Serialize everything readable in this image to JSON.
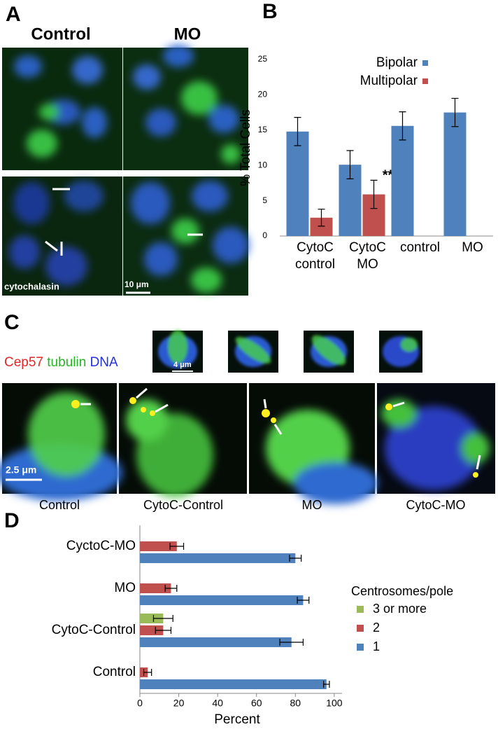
{
  "panel_labels": [
    "A",
    "B",
    "C",
    "D"
  ],
  "panel_a": {
    "columns": [
      "Control",
      "MO"
    ],
    "treatment": "cytochalasin",
    "scale_bar": "10 μm"
  },
  "panel_c": {
    "stain_legend": [
      {
        "text": "Cep57",
        "color": "#e02828"
      },
      {
        "text": "tubulin",
        "color": "#22b822"
      },
      {
        "text": "DNA",
        "color": "#2232d8"
      }
    ],
    "scale_bar_small": "4 μm",
    "scale_bar_large": "2.5 μm",
    "captions": [
      "Control",
      "CytoC-Control",
      "MO",
      "CytoC-MO"
    ]
  },
  "chart_data": [
    {
      "type": "bar",
      "ylabel": "% Total Cells",
      "categories": [
        "CytoC control",
        "CytoC MO",
        "control",
        "MO"
      ],
      "series": [
        {
          "name": "Bipolar",
          "color": "#4f81bd",
          "values": [
            14.8,
            10.1,
            15.6,
            17.5
          ],
          "errors": [
            2.0,
            2.0,
            2.0,
            2.0
          ]
        },
        {
          "name": "Multipolar",
          "color": "#c0504d",
          "values": [
            2.6,
            5.9,
            null,
            null
          ],
          "errors": [
            1.2,
            2.0,
            null,
            null
          ]
        }
      ],
      "annotation": "**",
      "ylim": [
        0,
        25
      ],
      "yticks": [
        0,
        5,
        10,
        15,
        20,
        25
      ],
      "legend": "top-right"
    },
    {
      "type": "hbar",
      "xlabel": "Percent",
      "legend_title": "Centrosomes/pole",
      "categories": [
        "CyctoC-MO",
        "MO",
        "CytoC-Control",
        "Control"
      ],
      "series": [
        {
          "name": "1",
          "color": "#4f81bd",
          "values": [
            80,
            84,
            78,
            96
          ],
          "errors": [
            3,
            3,
            6,
            1.5
          ]
        },
        {
          "name": "2",
          "color": "#c0504d",
          "values": [
            19,
            16,
            12,
            4
          ],
          "errors": [
            3.5,
            3,
            4,
            2
          ]
        },
        {
          "name": "3 or more",
          "color": "#9bbb59",
          "values": [
            null,
            null,
            12,
            null
          ],
          "errors": [
            null,
            null,
            5,
            null
          ]
        }
      ],
      "xlim": [
        0,
        104
      ],
      "xticks": [
        0,
        20,
        40,
        60,
        80,
        100
      ],
      "legend": "right"
    }
  ]
}
